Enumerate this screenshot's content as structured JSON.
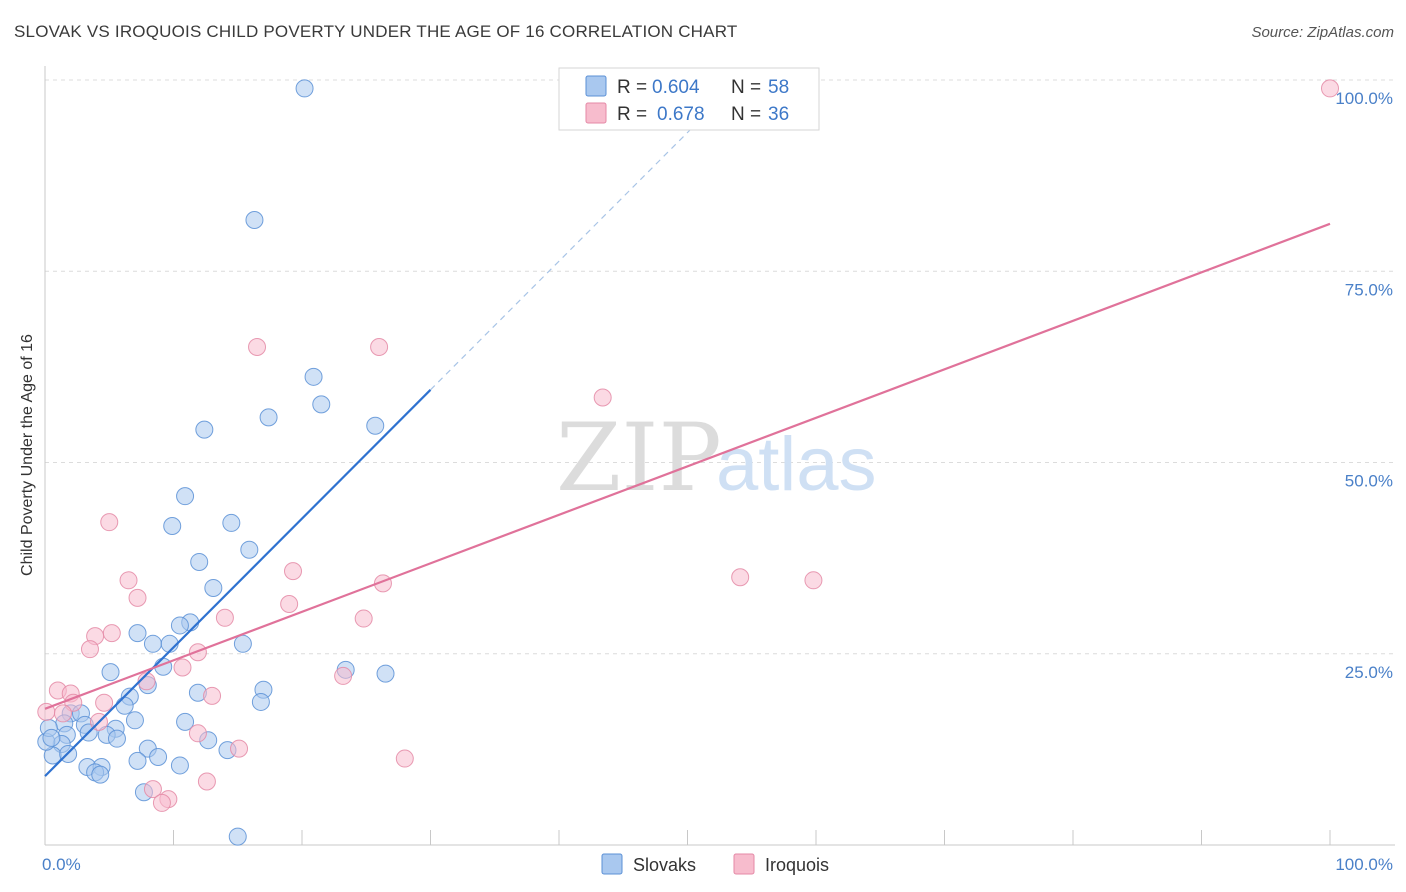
{
  "title": "SLOVAK VS IROQUOIS CHILD POVERTY UNDER THE AGE OF 16 CORRELATION CHART",
  "source": "Source: ZipAtlas.com",
  "watermark": {
    "zip": "ZIP",
    "atlas": "atlas"
  },
  "colors": {
    "slovaks_fill": "#a9c8ef",
    "slovaks_stroke": "#5b90d6",
    "slovaks_line": "#2f72d0",
    "iroquois_fill": "#f7bccd",
    "iroquois_stroke": "#e489a6",
    "iroquois_line": "#e0729a",
    "tick_text": "#4a80c8",
    "grid": "#dcdcdc"
  },
  "legend": {
    "rows": [
      {
        "r_label": "R = ",
        "r_value": "0.604",
        "n_label": "N = ",
        "n_value": "58"
      },
      {
        "r_label": "R = ",
        "r_value": "0.678",
        "n_label": "N = ",
        "n_value": "36"
      }
    ]
  },
  "chart_data": {
    "type": "scatter",
    "ylabel": "Child Poverty Under the Age of 16",
    "xlim": [
      0,
      100
    ],
    "ylim": [
      0,
      100
    ],
    "x_tick_labels": [
      "0.0%",
      "100.0%"
    ],
    "y_ticks": [
      25,
      50,
      75,
      100
    ],
    "y_tick_labels": [
      "25.0%",
      "50.0%",
      "75.0%",
      "100.0%"
    ],
    "grid": true,
    "legend_position": "top-center",
    "series": [
      {
        "name": "Slovaks",
        "points": [
          [
            20.2,
            98.9
          ],
          [
            16.3,
            81.7
          ],
          [
            20.9,
            61.2
          ],
          [
            21.5,
            57.6
          ],
          [
            17.4,
            55.9
          ],
          [
            12.4,
            54.3
          ],
          [
            25.7,
            54.8
          ],
          [
            10.9,
            45.6
          ],
          [
            9.9,
            41.7
          ],
          [
            14.5,
            42.1
          ],
          [
            12.0,
            37.0
          ],
          [
            15.9,
            38.6
          ],
          [
            13.1,
            33.6
          ],
          [
            11.3,
            29.1
          ],
          [
            10.5,
            28.7
          ],
          [
            7.2,
            27.7
          ],
          [
            8.4,
            26.3
          ],
          [
            9.7,
            26.3
          ],
          [
            15.4,
            26.3
          ],
          [
            9.2,
            23.3
          ],
          [
            23.4,
            22.9
          ],
          [
            26.5,
            22.4
          ],
          [
            17.0,
            20.3
          ],
          [
            8.0,
            20.9
          ],
          [
            5.1,
            22.6
          ],
          [
            11.9,
            19.9
          ],
          [
            6.6,
            19.4
          ],
          [
            16.8,
            18.7
          ],
          [
            6.2,
            18.2
          ],
          [
            2.0,
            17.2
          ],
          [
            2.8,
            17.2
          ],
          [
            3.1,
            15.7
          ],
          [
            7.0,
            16.3
          ],
          [
            1.5,
            15.9
          ],
          [
            5.5,
            15.2
          ],
          [
            10.9,
            16.1
          ],
          [
            4.8,
            14.4
          ],
          [
            1.7,
            14.4
          ],
          [
            5.6,
            13.9
          ],
          [
            1.3,
            13.2
          ],
          [
            3.4,
            14.7
          ],
          [
            8.0,
            12.6
          ],
          [
            12.7,
            13.7
          ],
          [
            14.2,
            12.4
          ],
          [
            8.8,
            11.5
          ],
          [
            0.6,
            11.7
          ],
          [
            7.2,
            11.0
          ],
          [
            10.5,
            10.4
          ],
          [
            3.3,
            10.2
          ],
          [
            4.4,
            10.2
          ],
          [
            3.9,
            9.5
          ],
          [
            4.3,
            9.2
          ],
          [
            0.1,
            13.5
          ],
          [
            1.8,
            11.9
          ],
          [
            7.7,
            6.9
          ],
          [
            15.0,
            1.1
          ],
          [
            0.3,
            15.3
          ],
          [
            0.5,
            14.0
          ]
        ]
      },
      {
        "name": "Iroquois",
        "points": [
          [
            100,
            98.9
          ],
          [
            16.5,
            65.1
          ],
          [
            26.0,
            65.1
          ],
          [
            43.4,
            58.5
          ],
          [
            5.0,
            42.2
          ],
          [
            19.3,
            35.8
          ],
          [
            54.1,
            35.0
          ],
          [
            59.8,
            34.6
          ],
          [
            6.5,
            34.6
          ],
          [
            26.3,
            34.2
          ],
          [
            7.2,
            32.3
          ],
          [
            19.0,
            31.5
          ],
          [
            14.0,
            29.7
          ],
          [
            24.8,
            29.6
          ],
          [
            5.2,
            27.7
          ],
          [
            3.9,
            27.3
          ],
          [
            3.5,
            25.6
          ],
          [
            11.9,
            25.2
          ],
          [
            10.7,
            23.2
          ],
          [
            23.2,
            22.1
          ],
          [
            7.9,
            21.4
          ],
          [
            1.0,
            20.2
          ],
          [
            2.0,
            19.8
          ],
          [
            13.0,
            19.5
          ],
          [
            2.2,
            18.6
          ],
          [
            4.6,
            18.6
          ],
          [
            0.1,
            17.4
          ],
          [
            1.4,
            17.2
          ],
          [
            4.2,
            16.1
          ],
          [
            11.9,
            14.6
          ],
          [
            15.1,
            12.6
          ],
          [
            28.0,
            11.3
          ],
          [
            12.6,
            8.3
          ],
          [
            8.4,
            7.3
          ],
          [
            9.6,
            6.0
          ],
          [
            9.1,
            5.5
          ]
        ]
      }
    ],
    "trendlines": [
      {
        "series": "Slovaks",
        "x0": 0,
        "y0": 9.0,
        "x1": 30,
        "y1": 59.5,
        "dashed_to_x": 52,
        "dashed_to_y": 96.5
      },
      {
        "series": "Iroquois",
        "x0": 0,
        "y0": 17.8,
        "x1": 100,
        "y1": 81.2
      }
    ]
  },
  "bottom_legend": [
    "Slovaks",
    "Iroquois"
  ]
}
